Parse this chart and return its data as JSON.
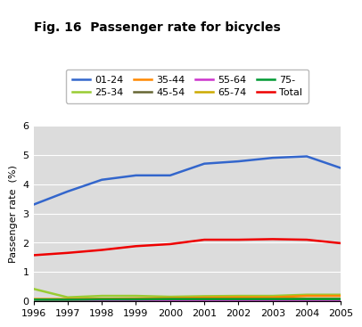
{
  "title": "Fig. 16  Passenger rate for bicycles",
  "ylabel": "Passenger rate  (%)",
  "years": [
    1996,
    1997,
    1998,
    1999,
    2000,
    2001,
    2002,
    2003,
    2004,
    2005
  ],
  "series_order": [
    "01-24",
    "25-34",
    "35-44",
    "45-54",
    "55-64",
    "65-74",
    "75-",
    "Total"
  ],
  "series": {
    "01-24": [
      3.3,
      3.75,
      4.15,
      4.3,
      4.3,
      4.7,
      4.78,
      4.9,
      4.95,
      4.55
    ],
    "25-34": [
      0.42,
      0.13,
      0.18,
      0.18,
      0.15,
      0.17,
      0.18,
      0.18,
      0.22,
      0.22
    ],
    "35-44": [
      0.07,
      0.07,
      0.08,
      0.09,
      0.1,
      0.12,
      0.13,
      0.13,
      0.18,
      0.18
    ],
    "45-54": [
      0.05,
      0.05,
      0.05,
      0.06,
      0.06,
      0.07,
      0.07,
      0.07,
      0.08,
      0.08
    ],
    "55-64": [
      0.03,
      0.03,
      0.03,
      0.03,
      0.03,
      0.03,
      0.03,
      0.03,
      0.03,
      0.03
    ],
    "65-74": [
      0.06,
      0.06,
      0.07,
      0.07,
      0.08,
      0.08,
      0.08,
      0.08,
      0.07,
      0.07
    ],
    "75-": [
      0.05,
      0.05,
      0.06,
      0.06,
      0.07,
      0.07,
      0.07,
      0.07,
      0.07,
      0.07
    ],
    "Total": [
      1.57,
      1.65,
      1.75,
      1.88,
      1.95,
      2.1,
      2.1,
      2.12,
      2.1,
      1.98
    ]
  },
  "colors": {
    "01-24": "#3366cc",
    "25-34": "#99cc33",
    "35-44": "#ff8800",
    "45-54": "#666633",
    "55-64": "#cc33cc",
    "65-74": "#ccaa00",
    "75-": "#009933",
    "Total": "#ee0000"
  },
  "ylim": [
    0,
    6
  ],
  "yticks": [
    0,
    1,
    2,
    3,
    4,
    5,
    6
  ],
  "bg_color": "#dcdcdc",
  "legend_bg": "#ffffff",
  "title_fontsize": 10,
  "axis_label_fontsize": 8,
  "tick_fontsize": 8,
  "legend_fontsize": 8
}
